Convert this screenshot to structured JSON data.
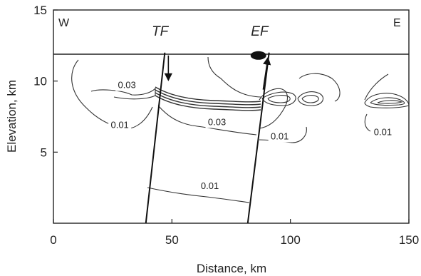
{
  "chart_data": {
    "type": "contour",
    "title": "",
    "xlabel": "Distance, km",
    "ylabel": "Elevation, km",
    "xlim": [
      0,
      150
    ],
    "ylim": [
      0,
      15
    ],
    "xticks": [
      0,
      50,
      100,
      150
    ],
    "yticks": [
      5,
      10,
      15
    ],
    "xtick_labels": [
      "0",
      "50",
      "100",
      "150"
    ],
    "ytick_labels": [
      "5",
      "10",
      "15"
    ],
    "grid": false,
    "orientation_labels": {
      "west": "W",
      "east": "E"
    },
    "top_band_lower_elevation": 12,
    "faults": [
      {
        "label": "TF",
        "x_bottom": 39,
        "x_top": 47,
        "label_x": 45,
        "label_y": 13.2
      },
      {
        "label": "EF",
        "x_bottom": 82,
        "x_top": 91,
        "label_x": 87,
        "label_y": 13.2
      }
    ],
    "blob": {
      "x": 86.5,
      "y": 11.8
    },
    "flow_arrows": [
      {
        "from": [
          48.5,
          11.8
        ],
        "to": [
          48.5,
          10.1
        ]
      },
      {
        "from": [
          88.5,
          9.4
        ],
        "to": [
          90.5,
          11.6
        ]
      }
    ],
    "contour_labels": [
      {
        "text": "0.03",
        "x": 31,
        "y": 9.5
      },
      {
        "text": "0.01",
        "x": 28,
        "y": 6.7
      },
      {
        "text": "0.03",
        "x": 69,
        "y": 6.9
      },
      {
        "text": "0.01",
        "x": 95.5,
        "y": 5.9
      },
      {
        "text": "0.01",
        "x": 139,
        "y": 6.2
      },
      {
        "text": "0.01",
        "x": 66,
        "y": 2.4
      }
    ]
  }
}
